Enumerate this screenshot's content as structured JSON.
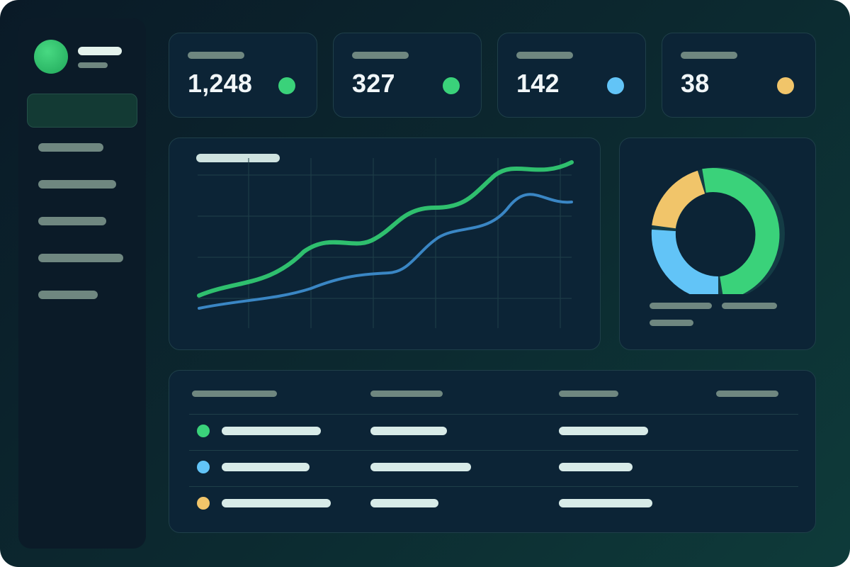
{
  "stats": [
    {
      "value": "1,248",
      "dot_color": "#3ad27a"
    },
    {
      "value": "327",
      "dot_color": "#3ad27a"
    },
    {
      "value": "142",
      "dot_color": "#62c4f7"
    },
    {
      "value": "38",
      "dot_color": "#f1c56a"
    }
  ],
  "colors": {
    "green": "#3ad27a",
    "blue": "#62c4f7",
    "yellow": "#f1c56a",
    "line_blue": "#3a86c4",
    "donut_track": "#143c45"
  },
  "table_rows": [
    {
      "dot_color": "#3ad27a"
    },
    {
      "dot_color": "#62c4f7"
    },
    {
      "dot_color": "#f1c56a"
    }
  ]
}
